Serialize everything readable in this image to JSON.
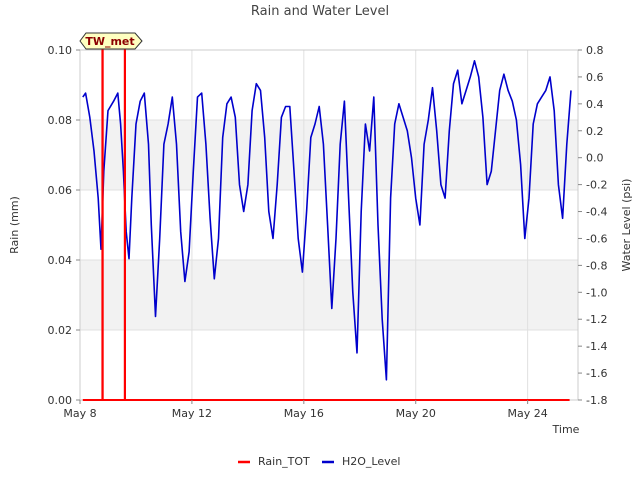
{
  "chart_data": {
    "type": "line",
    "title": "Rain and Water Level",
    "xlabel": "Time",
    "ylabel_left": "Rain (mm)",
    "ylabel_right": "Water Level (psi)",
    "x_tick_labels": [
      "May 8",
      "May 12",
      "May 16",
      "May 20",
      "May 24"
    ],
    "x_tick_days": [
      8,
      12,
      16,
      20,
      24
    ],
    "xlim_days": [
      8,
      25.8
    ],
    "ylim_left": [
      0,
      0.1
    ],
    "y_left_ticks": [
      "0.00",
      "0.02",
      "0.04",
      "0.06",
      "0.08",
      "0.10"
    ],
    "ylim_right": [
      -1.8,
      0.8
    ],
    "y_right_ticks": [
      "-1.8",
      "-1.6",
      "-1.4",
      "-1.2",
      "-1.0",
      "-0.8",
      "-0.6",
      "-0.4",
      "-0.2",
      "0.0",
      "0.2",
      "0.4",
      "0.6",
      "0.8"
    ],
    "grid": true,
    "legend_position": "bottom",
    "badge": "TW_met",
    "series": [
      {
        "name": "Rain_TOT",
        "axis": "left",
        "color": "#ff0000",
        "x": [
          8.1,
          8.8,
          8.8,
          8.81,
          8.81,
          9.6,
          9.6,
          9.61,
          9.61,
          25.5
        ],
        "y": [
          0,
          0,
          0.1,
          0.1,
          0,
          0,
          0.1,
          0.1,
          0,
          0
        ]
      },
      {
        "name": "H2O_Level",
        "axis": "right",
        "color": "#0000cc",
        "x": [
          8.1,
          8.2,
          8.35,
          8.5,
          8.65,
          8.75,
          8.85,
          9.0,
          9.2,
          9.35,
          9.45,
          9.55,
          9.65,
          9.75,
          9.85,
          10.0,
          10.15,
          10.3,
          10.45,
          10.55,
          10.7,
          10.85,
          11.0,
          11.15,
          11.3,
          11.45,
          11.6,
          11.75,
          11.9,
          12.05,
          12.2,
          12.35,
          12.5,
          12.65,
          12.8,
          12.95,
          13.1,
          13.25,
          13.4,
          13.55,
          13.7,
          13.85,
          14.0,
          14.15,
          14.3,
          14.45,
          14.6,
          14.75,
          14.9,
          15.05,
          15.2,
          15.35,
          15.5,
          15.65,
          15.8,
          15.95,
          16.1,
          16.25,
          16.4,
          16.55,
          16.7,
          16.85,
          17.0,
          17.15,
          17.3,
          17.45,
          17.6,
          17.75,
          17.9,
          18.05,
          18.2,
          18.35,
          18.5,
          18.65,
          18.8,
          18.95,
          19.1,
          19.25,
          19.4,
          19.55,
          19.7,
          19.85,
          20.0,
          20.15,
          20.3,
          20.45,
          20.6,
          20.75,
          20.9,
          21.05,
          21.2,
          21.35,
          21.5,
          21.65,
          21.8,
          21.95,
          22.1,
          22.25,
          22.4,
          22.55,
          22.7,
          22.85,
          23.0,
          23.15,
          23.3,
          23.45,
          23.6,
          23.75,
          23.9,
          24.05,
          24.2,
          24.35,
          24.5,
          24.65,
          24.8,
          24.95,
          25.1,
          25.25,
          25.4,
          25.55
        ],
        "y": [
          0.45,
          0.48,
          0.3,
          0.05,
          -0.3,
          -0.68,
          -0.1,
          0.35,
          0.42,
          0.48,
          0.25,
          -0.1,
          -0.55,
          -0.75,
          -0.3,
          0.25,
          0.42,
          0.48,
          0.1,
          -0.5,
          -1.18,
          -0.6,
          0.1,
          0.25,
          0.45,
          0.1,
          -0.55,
          -0.92,
          -0.7,
          -0.1,
          0.45,
          0.48,
          0.1,
          -0.45,
          -0.9,
          -0.6,
          0.15,
          0.4,
          0.45,
          0.3,
          -0.2,
          -0.4,
          -0.2,
          0.35,
          0.55,
          0.5,
          0.15,
          -0.4,
          -0.6,
          -0.2,
          0.3,
          0.38,
          0.38,
          -0.1,
          -0.6,
          -0.85,
          -0.4,
          0.15,
          0.25,
          0.38,
          0.1,
          -0.5,
          -1.12,
          -0.6,
          0.1,
          0.42,
          -0.3,
          -1.0,
          -1.45,
          -0.4,
          0.25,
          0.05,
          0.45,
          -0.5,
          -1.2,
          -1.65,
          -0.3,
          0.25,
          0.4,
          0.3,
          0.2,
          0.0,
          -0.3,
          -0.5,
          0.1,
          0.28,
          0.52,
          0.2,
          -0.2,
          -0.3,
          0.2,
          0.55,
          0.65,
          0.4,
          0.5,
          0.6,
          0.72,
          0.6,
          0.3,
          -0.2,
          -0.1,
          0.2,
          0.5,
          0.62,
          0.5,
          0.42,
          0.28,
          -0.05,
          -0.6,
          -0.3,
          0.25,
          0.4,
          0.45,
          0.5,
          0.6,
          0.35,
          -0.2,
          -0.45,
          0.1,
          0.5
        ]
      }
    ]
  }
}
